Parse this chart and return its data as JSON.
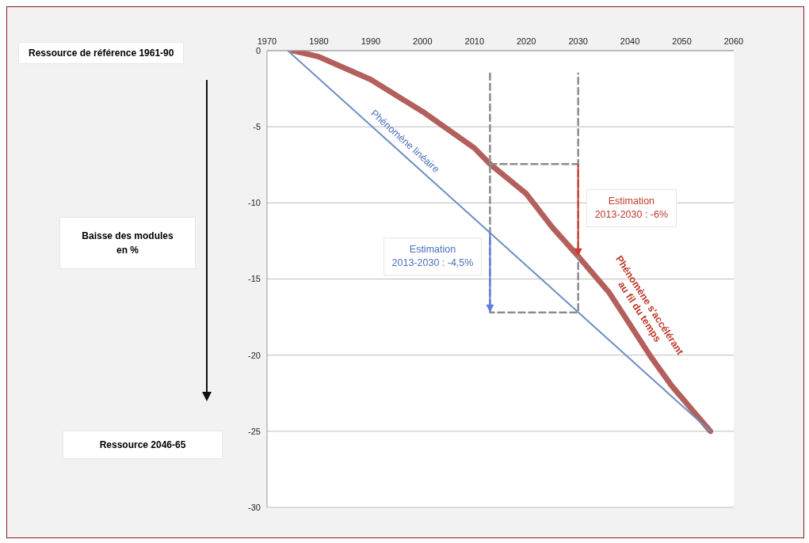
{
  "chart_data": {
    "type": "line",
    "xlim": [
      1970,
      2060
    ],
    "xticks": [
      1970,
      1980,
      1990,
      2000,
      2010,
      2020,
      2030,
      2040,
      2050,
      2060
    ],
    "ylim": [
      -30,
      0
    ],
    "yticks": [
      0,
      -5,
      -10,
      -15,
      -20,
      -25,
      -30
    ],
    "grid": "y",
    "legend": false,
    "marker": "none",
    "series": [
      {
        "name": "Phénomène linéaire",
        "color": "#6f8fc4",
        "x": [
          1974,
          2055.5
        ],
        "values": [
          0,
          -25
        ]
      },
      {
        "name": "Phénomène s'accélérant au fil du temps",
        "color": "#b3605c",
        "x": [
          1975,
          1980,
          1990,
          2000,
          2010,
          2013,
          2020,
          2025,
          2030,
          2036,
          2040,
          2044,
          2048,
          2052,
          2055.5
        ],
        "values": [
          0,
          -0.4,
          -1.9,
          -4.0,
          -6.4,
          -7.45,
          -9.4,
          -11.6,
          -13.5,
          -15.9,
          -18.0,
          -20.1,
          -22.0,
          -23.6,
          -25
        ]
      },
      {
        "color": "#8c8c8c",
        "line_style": "dashed",
        "x": [
          2013,
          2013,
          2030,
          2030
        ],
        "values": [
          -1.5,
          -17.2,
          -17.2,
          -1.5
        ]
      },
      {
        "color": "#8c8c8c",
        "line_style": "dashed",
        "x": [
          2013,
          2030
        ],
        "values": [
          -7.45,
          -7.45
        ]
      }
    ],
    "annotations": [
      "Ressource de référence 1961-90",
      "Baisse des modules\nen %",
      "Ressource 2046-65",
      "Estimation\n2013-2030 : -6%",
      "Estimation\n2013-2030 : -4,5%"
    ]
  }
}
